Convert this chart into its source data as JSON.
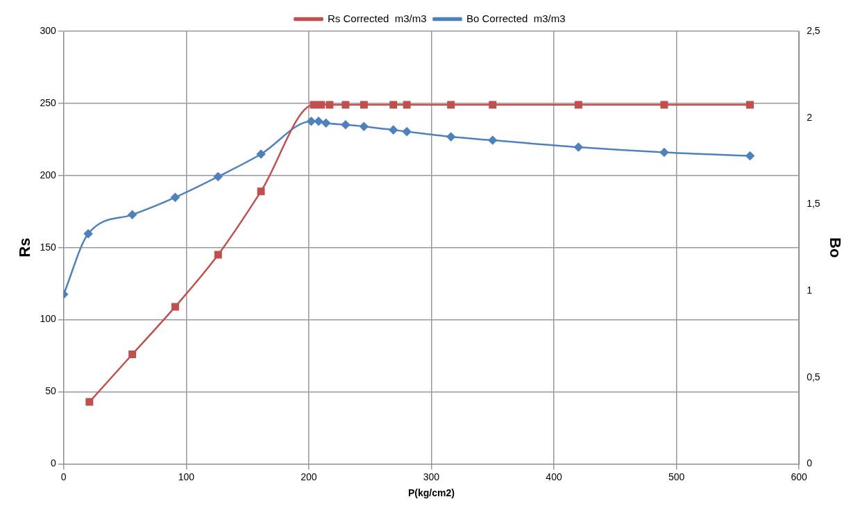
{
  "chart_data": {
    "type": "line",
    "xlabel": "P(kg/cm2)",
    "ylabel": "Rs",
    "y2label": "Bo",
    "xlim": [
      0,
      600
    ],
    "xticks": [
      0,
      100,
      200,
      300,
      400,
      500,
      600
    ],
    "ylim": [
      0,
      300
    ],
    "yticks": [
      0,
      50,
      100,
      150,
      200,
      250,
      300
    ],
    "y2lim": [
      0,
      2.5
    ],
    "y2ticks": [
      {
        "value": 0,
        "label": "0"
      },
      {
        "value": 0.5,
        "label": "0,5"
      },
      {
        "value": 1,
        "label": "1"
      },
      {
        "value": 1.5,
        "label": "1,5"
      },
      {
        "value": 2,
        "label": "2"
      },
      {
        "value": 2.5,
        "label": "2,5"
      }
    ],
    "grid": true,
    "legend": "top",
    "series": [
      {
        "name": "Rs Corrected  m3/m3",
        "color": "#c0504d",
        "marker": "square",
        "x": [
          21,
          56,
          91,
          126,
          161,
          204,
          210,
          217,
          230,
          245,
          269,
          280,
          316,
          350,
          420,
          490,
          560
        ],
        "values": [
          43,
          76,
          109,
          145,
          189,
          249,
          249,
          249,
          249,
          249,
          249,
          249,
          249,
          249,
          249,
          249,
          249
        ]
      },
      {
        "name": "Bo Corrected  m3/m3",
        "color": "#4f81bd",
        "marker": "diamond",
        "axis": "y2",
        "x": [
          0,
          20,
          56,
          91,
          126,
          161,
          202,
          208,
          214,
          230,
          245,
          269,
          280,
          316,
          350,
          420,
          490,
          560
        ],
        "values": [
          0.98,
          1.33,
          1.44,
          1.54,
          1.66,
          1.79,
          1.98,
          1.98,
          1.97,
          1.96,
          1.95,
          1.93,
          1.92,
          1.89,
          1.87,
          1.83,
          1.8,
          1.78
        ]
      }
    ]
  }
}
